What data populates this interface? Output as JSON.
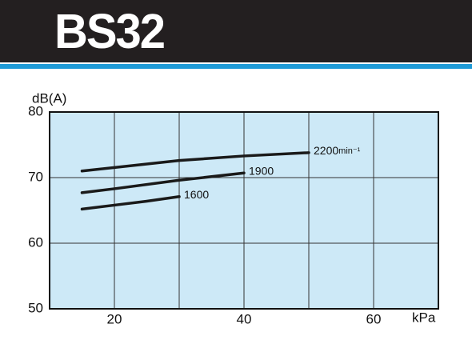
{
  "chart_data": {
    "type": "line",
    "title": "BS32",
    "y_label": "dB(A)",
    "x_label": "kPa",
    "speed_unit": "min⁻¹",
    "xlim": [
      10,
      70
    ],
    "ylim": [
      50,
      80
    ],
    "xticks": [
      20,
      40,
      60
    ],
    "minor_xticks": [
      30,
      50
    ],
    "yticks": [
      50,
      60,
      70,
      80
    ],
    "grid": true,
    "background": "#cde9f7",
    "line_color": "#1a1a1a",
    "series": [
      {
        "name": "2200",
        "x": [
          15,
          30,
          40,
          50
        ],
        "values": [
          71.0,
          72.6,
          73.3,
          73.8
        ]
      },
      {
        "name": "1900",
        "x": [
          15,
          20,
          30,
          40
        ],
        "values": [
          67.7,
          68.3,
          69.6,
          70.7
        ]
      },
      {
        "name": "1600",
        "x": [
          15,
          20,
          25,
          30
        ],
        "values": [
          65.2,
          65.8,
          66.4,
          67.1
        ]
      }
    ]
  }
}
